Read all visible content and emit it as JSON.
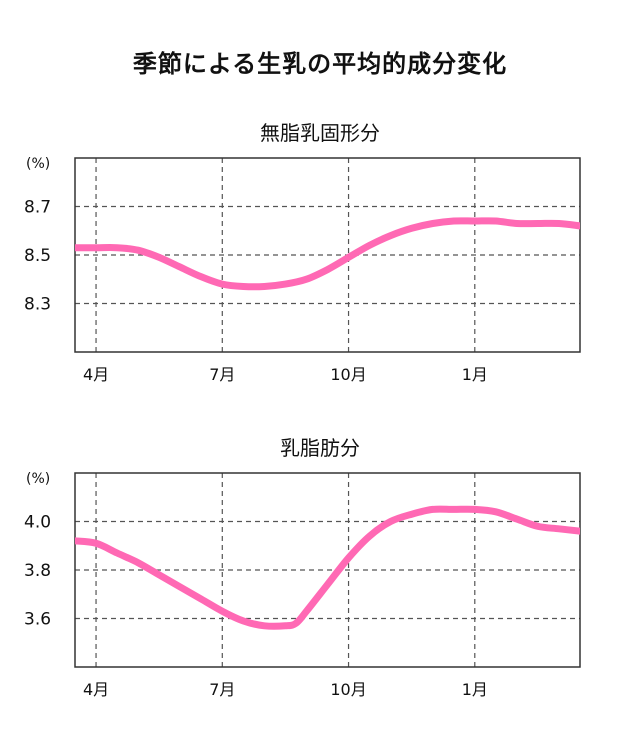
{
  "title": "季節による生乳の平均的成分変化",
  "colors": {
    "line": "#ff69b4",
    "axis": "#333333",
    "grid": "#555555",
    "background": "#ffffff"
  },
  "chart_data": [
    {
      "type": "line",
      "title": "無脂乳固形分",
      "unit_label": "(%)",
      "x_type": "month",
      "categories": [
        "4月",
        "7月",
        "10月",
        "1月"
      ],
      "xlim": [
        3.5,
        15.5
      ],
      "ylim": [
        8.1,
        8.9
      ],
      "yticks": [
        "8.3",
        "8.5",
        "8.7"
      ],
      "grid": true,
      "legend": "none",
      "series": [
        {
          "x": [
            3.5,
            4.0,
            4.5,
            5.0,
            5.5,
            6.0,
            6.5,
            7.0,
            7.5,
            8.0,
            8.5,
            9.0,
            9.5,
            10.0,
            10.5,
            11.0,
            11.5,
            12.0,
            12.5,
            13.0,
            13.5,
            14.0,
            14.5,
            15.0,
            15.5
          ],
          "values": [
            8.53,
            8.53,
            8.53,
            8.52,
            8.49,
            8.45,
            8.41,
            8.38,
            8.37,
            8.37,
            8.38,
            8.4,
            8.44,
            8.49,
            8.54,
            8.58,
            8.61,
            8.63,
            8.64,
            8.64,
            8.64,
            8.63,
            8.63,
            8.63,
            8.62
          ]
        }
      ]
    },
    {
      "type": "line",
      "title": "乳脂肪分",
      "unit_label": "(%)",
      "x_type": "month",
      "categories": [
        "4月",
        "7月",
        "10月",
        "1月"
      ],
      "xlim": [
        3.5,
        15.5
      ],
      "ylim": [
        3.4,
        4.2
      ],
      "yticks": [
        "3.6",
        "3.8",
        "4.0"
      ],
      "grid": true,
      "legend": "none",
      "series": [
        {
          "x": [
            3.5,
            4.0,
            4.5,
            5.0,
            5.5,
            6.0,
            6.5,
            7.0,
            7.5,
            8.0,
            8.5,
            8.75,
            9.0,
            9.5,
            10.0,
            10.5,
            11.0,
            11.5,
            12.0,
            12.5,
            13.0,
            13.5,
            14.0,
            14.5,
            15.0,
            15.5
          ],
          "values": [
            3.92,
            3.91,
            3.87,
            3.83,
            3.78,
            3.73,
            3.68,
            3.63,
            3.59,
            3.57,
            3.57,
            3.58,
            3.63,
            3.74,
            3.85,
            3.94,
            4.0,
            4.03,
            4.05,
            4.05,
            4.05,
            4.04,
            4.01,
            3.98,
            3.97,
            3.96
          ]
        }
      ]
    }
  ]
}
